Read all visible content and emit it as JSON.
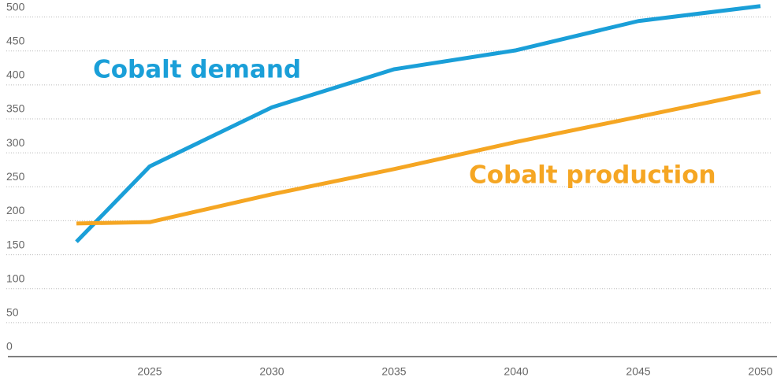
{
  "chart_data": {
    "type": "line",
    "x": [
      2022,
      2025,
      2030,
      2035,
      2040,
      2045,
      2050
    ],
    "series": [
      {
        "name": "Cobalt demand",
        "color": "#1a9fd8",
        "values": [
          169,
          280,
          367,
          423,
          451,
          494,
          516
        ]
      },
      {
        "name": "Cobalt production",
        "color": "#f5a623",
        "values": [
          196,
          198,
          239,
          276,
          316,
          353,
          390
        ]
      }
    ],
    "xlim": [
      2019,
      2050.5
    ],
    "xticks": [
      2025,
      2030,
      2035,
      2040,
      2045,
      2050
    ],
    "ylim": [
      0,
      525
    ],
    "yticks": [
      0,
      50,
      100,
      150,
      200,
      250,
      300,
      350,
      400,
      450,
      500
    ],
    "grid": true
  }
}
